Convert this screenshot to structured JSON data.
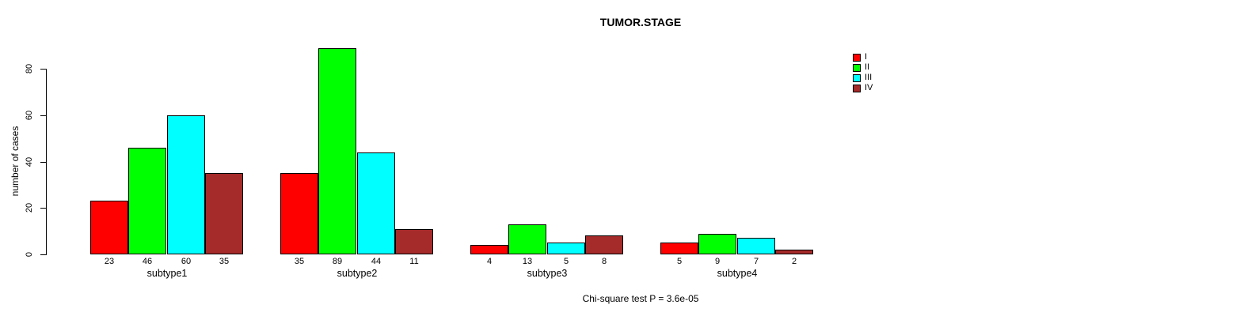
{
  "title": "TUMOR.STAGE",
  "y_axis": {
    "label": "number of cases",
    "ticks": [
      0,
      20,
      40,
      60,
      80
    ]
  },
  "footer": "Chi-square test P = 3.6e-05",
  "legend": {
    "position": "right",
    "items": [
      {
        "label": "I",
        "color": "#FF0000"
      },
      {
        "label": "II",
        "color": "#00FF00"
      },
      {
        "label": "III",
        "color": "#00FFFF"
      },
      {
        "label": "IV",
        "color": "#A52A2A"
      }
    ]
  },
  "chart_data": {
    "type": "bar",
    "grouped": true,
    "title": "TUMOR.STAGE",
    "xlabel": "",
    "ylabel": "number of cases",
    "categories": [
      "subtype1",
      "subtype2",
      "subtype3",
      "subtype4"
    ],
    "series": [
      {
        "name": "I",
        "color": "#FF0000",
        "values": [
          23,
          35,
          4,
          5
        ]
      },
      {
        "name": "II",
        "color": "#00FF00",
        "values": [
          46,
          89,
          13,
          9
        ]
      },
      {
        "name": "III",
        "color": "#00FFFF",
        "values": [
          60,
          44,
          5,
          7
        ]
      },
      {
        "name": "IV",
        "color": "#A52A2A",
        "values": [
          35,
          11,
          8,
          2
        ]
      }
    ],
    "bar_value_labels_shown": true,
    "yticks": [
      0,
      20,
      40,
      60,
      80
    ],
    "ylim": [
      0,
      89
    ],
    "grid": false,
    "legend_position": "right",
    "annotation": "Chi-square test P = 3.6e-05"
  }
}
